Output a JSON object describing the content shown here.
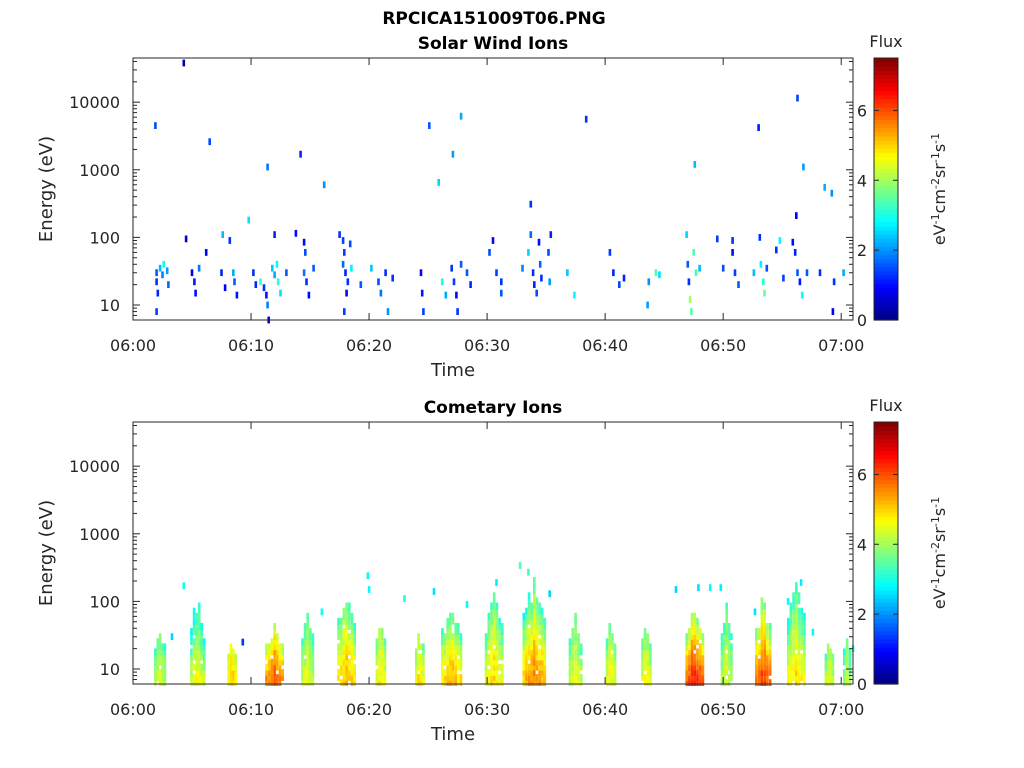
{
  "figure": {
    "filename": "RPCICA151009T06.PNG"
  },
  "chart_data": [
    {
      "type": "heatmap",
      "title": "Solar Wind Ions",
      "xlabel": "Time",
      "ylabel": "Energy (eV)",
      "x_ticks": [
        "06:00",
        "06:10",
        "06:20",
        "06:30",
        "06:40",
        "06:50",
        "07:00"
      ],
      "x_range_minutes": [
        0,
        61
      ],
      "y_scale": "log",
      "y_range": [
        6,
        45000
      ],
      "y_ticks": [
        {
          "value": 10,
          "label": "10"
        },
        {
          "value": 100,
          "label": "100"
        },
        {
          "value": 1000,
          "label": "1000"
        },
        {
          "value": 10000,
          "label": "10000"
        }
      ],
      "colorbar": {
        "title": "Flux",
        "label": "eV-1cm-2sr-1s-1",
        "range": [
          0,
          7.5
        ],
        "ticks": [
          "0",
          "2",
          "4",
          "6"
        ],
        "colormap": "jet"
      },
      "grid": false,
      "cells": [
        [
          2.0,
          30,
          1.6
        ],
        [
          2.0,
          22,
          1.3
        ],
        [
          2.1,
          15,
          1.2
        ],
        [
          2.0,
          8,
          1.4
        ],
        [
          2.3,
          35,
          2.3
        ],
        [
          2.5,
          28,
          1.9
        ],
        [
          2.6,
          40,
          2.9
        ],
        [
          2.9,
          32,
          2.1
        ],
        [
          3.0,
          20,
          1.7
        ],
        [
          1.9,
          4500,
          1.5
        ],
        [
          4.3,
          38000,
          0.3
        ],
        [
          4.5,
          95,
          0.6
        ],
        [
          5.0,
          30,
          0.9
        ],
        [
          5.2,
          22,
          1.1
        ],
        [
          5.3,
          15,
          1.0
        ],
        [
          5.6,
          35,
          1.8
        ],
        [
          6.2,
          60,
          0.9
        ],
        [
          6.5,
          2600,
          1.5
        ],
        [
          7.5,
          30,
          1.2
        ],
        [
          7.8,
          18,
          0.9
        ],
        [
          7.6,
          110,
          2.3
        ],
        [
          8.2,
          90,
          1.3
        ],
        [
          8.5,
          30,
          2.2
        ],
        [
          8.6,
          22,
          1.6
        ],
        [
          8.8,
          14,
          1.1
        ],
        [
          9.8,
          180,
          2.6
        ],
        [
          10.2,
          30,
          1.3
        ],
        [
          10.4,
          20,
          1.2
        ],
        [
          10.8,
          22,
          3.2
        ],
        [
          11.1,
          18,
          1.3
        ],
        [
          11.3,
          14,
          1.1
        ],
        [
          11.4,
          10,
          1.9
        ],
        [
          11.5,
          6,
          0.7
        ],
        [
          11.4,
          1100,
          1.8
        ],
        [
          11.8,
          35,
          2.4
        ],
        [
          12.0,
          28,
          2.2
        ],
        [
          12.2,
          40,
          2.8
        ],
        [
          12.3,
          22,
          3.1
        ],
        [
          12.5,
          15,
          2.6
        ],
        [
          12.0,
          110,
          1.2
        ],
        [
          13.0,
          30,
          1.6
        ],
        [
          13.8,
          115,
          1.0
        ],
        [
          14.2,
          1700,
          1.2
        ],
        [
          14.5,
          85,
          1.0
        ],
        [
          14.6,
          60,
          1.5
        ],
        [
          14.5,
          30,
          1.8
        ],
        [
          14.7,
          22,
          1.3
        ],
        [
          14.9,
          14,
          1.0
        ],
        [
          15.3,
          35,
          1.6
        ],
        [
          16.2,
          600,
          2.0
        ],
        [
          17.5,
          110,
          1.3
        ],
        [
          17.8,
          90,
          1.4
        ],
        [
          17.9,
          60,
          1.4
        ],
        [
          17.8,
          40,
          1.7
        ],
        [
          18.0,
          30,
          1.2
        ],
        [
          18.2,
          22,
          1.3
        ],
        [
          18.1,
          15,
          1.0
        ],
        [
          18.4,
          80,
          1.5
        ],
        [
          18.5,
          35,
          2.7
        ],
        [
          17.9,
          8,
          1.4
        ],
        [
          19.3,
          20,
          1.6
        ],
        [
          20.2,
          35,
          2.4
        ],
        [
          20.8,
          22,
          1.5
        ],
        [
          21.0,
          15,
          1.8
        ],
        [
          21.4,
          30,
          1.3
        ],
        [
          21.6,
          8,
          2.0
        ],
        [
          22.0,
          25,
          1.3
        ],
        [
          24.4,
          30,
          1.0
        ],
        [
          24.5,
          15,
          1.1
        ],
        [
          24.6,
          8,
          1.4
        ],
        [
          25.1,
          4500,
          1.6
        ],
        [
          25.9,
          650,
          2.5
        ],
        [
          26.2,
          22,
          3.0
        ],
        [
          26.5,
          14,
          2.2
        ],
        [
          27.0,
          35,
          1.3
        ],
        [
          27.1,
          1700,
          2.1
        ],
        [
          27.2,
          22,
          1.4
        ],
        [
          27.4,
          14,
          1.0
        ],
        [
          27.5,
          8,
          1.3
        ],
        [
          27.8,
          40,
          1.6
        ],
        [
          27.8,
          6200,
          2.2
        ],
        [
          28.3,
          30,
          1.6
        ],
        [
          28.6,
          20,
          1.2
        ],
        [
          30.2,
          60,
          1.5
        ],
        [
          30.5,
          90,
          1.0
        ],
        [
          30.8,
          30,
          1.4
        ],
        [
          31.2,
          15,
          1.6
        ],
        [
          31.2,
          22,
          1.3
        ],
        [
          33.0,
          35,
          1.9
        ],
        [
          33.5,
          60,
          2.5
        ],
        [
          33.7,
          110,
          1.7
        ],
        [
          33.7,
          310,
          1.3
        ],
        [
          33.9,
          30,
          1.3
        ],
        [
          34.0,
          20,
          1.2
        ],
        [
          34.2,
          15,
          1.5
        ],
        [
          34.4,
          85,
          1.0
        ],
        [
          34.5,
          40,
          1.7
        ],
        [
          34.6,
          25,
          1.3
        ],
        [
          35.4,
          110,
          1.2
        ],
        [
          35.2,
          60,
          1.5
        ],
        [
          35.3,
          22,
          2.1
        ],
        [
          36.8,
          30,
          2.4
        ],
        [
          37.4,
          14,
          2.8
        ],
        [
          38.4,
          5600,
          1.3
        ],
        [
          40.4,
          60,
          1.4
        ],
        [
          40.7,
          30,
          1.2
        ],
        [
          41.2,
          20,
          1.5
        ],
        [
          41.6,
          25,
          1.2
        ],
        [
          43.6,
          10,
          2.1
        ],
        [
          43.7,
          22,
          2.0
        ],
        [
          44.3,
          30,
          3.4
        ],
        [
          44.6,
          28,
          2.6
        ],
        [
          46.9,
          110,
          2.5
        ],
        [
          47.0,
          40,
          1.6
        ],
        [
          47.1,
          22,
          1.3
        ],
        [
          47.2,
          12,
          4.0
        ],
        [
          47.3,
          8,
          3.5
        ],
        [
          47.5,
          60,
          3.4
        ],
        [
          47.7,
          30,
          3.3
        ],
        [
          48.0,
          35,
          2.3
        ],
        [
          47.6,
          1200,
          2.3
        ],
        [
          49.5,
          95,
          1.4
        ],
        [
          50.0,
          35,
          1.5
        ],
        [
          50.8,
          90,
          1.3
        ],
        [
          50.8,
          60,
          1.0
        ],
        [
          51.0,
          30,
          1.4
        ],
        [
          51.3,
          20,
          1.6
        ],
        [
          52.6,
          30,
          2.3
        ],
        [
          53.1,
          100,
          1.3
        ],
        [
          53.2,
          40,
          2.7
        ],
        [
          53.4,
          22,
          3.1
        ],
        [
          53.5,
          15,
          3.6
        ],
        [
          53.7,
          35,
          1.5
        ],
        [
          53.0,
          4200,
          1.1
        ],
        [
          54.5,
          65,
          1.3
        ],
        [
          54.8,
          90,
          2.8
        ],
        [
          55.1,
          25,
          1.4
        ],
        [
          55.9,
          85,
          1.0
        ],
        [
          56.1,
          60,
          1.2
        ],
        [
          56.3,
          30,
          1.6
        ],
        [
          56.5,
          22,
          1.1
        ],
        [
          56.7,
          14,
          2.9
        ],
        [
          56.2,
          210,
          0.9
        ],
        [
          56.3,
          11500,
          1.4
        ],
        [
          56.8,
          1100,
          2.1
        ],
        [
          57.1,
          30,
          1.6
        ],
        [
          58.2,
          30,
          1.3
        ],
        [
          58.6,
          550,
          2.2
        ],
        [
          59.2,
          450,
          2.0
        ],
        [
          60.2,
          30,
          2.2
        ],
        [
          59.3,
          8,
          0.8
        ],
        [
          59.4,
          22,
          1.3
        ]
      ]
    },
    {
      "type": "heatmap",
      "title": "Cometary Ions",
      "xlabel": "Time",
      "ylabel": "Energy (eV)",
      "x_ticks": [
        "06:00",
        "06:10",
        "06:20",
        "06:30",
        "06:40",
        "06:50",
        "07:00"
      ],
      "x_range_minutes": [
        0,
        61
      ],
      "y_scale": "log",
      "y_range": [
        6,
        45000
      ],
      "y_ticks": [
        {
          "value": 10,
          "label": "10"
        },
        {
          "value": 100,
          "label": "100"
        },
        {
          "value": 1000,
          "label": "1000"
        },
        {
          "value": 10000,
          "label": "10000"
        }
      ],
      "colorbar": {
        "title": "Flux",
        "label": "eV-1cm-2sr-1s-1",
        "range": [
          0,
          7.5
        ],
        "ticks": [
          "0",
          "2",
          "4",
          "6"
        ],
        "colormap": "jet"
      },
      "grid": false,
      "bursts": [
        {
          "t": 2.3,
          "w": 1.0,
          "peak": 40,
          "core": 4.5,
          "edge": 3.6
        },
        {
          "t": 5.5,
          "w": 1.3,
          "peak": 150,
          "core": 4.7,
          "edge": 3.0
        },
        {
          "t": 8.4,
          "w": 0.8,
          "peak": 30,
          "core": 5.1,
          "edge": 4.5
        },
        {
          "t": 12.0,
          "w": 1.6,
          "peak": 45,
          "core": 6.0,
          "edge": 4.3
        },
        {
          "t": 14.8,
          "w": 1.1,
          "peak": 90,
          "core": 4.6,
          "edge": 3.5
        },
        {
          "t": 18.1,
          "w": 1.6,
          "peak": 170,
          "core": 5.3,
          "edge": 3.6
        },
        {
          "t": 21.0,
          "w": 0.9,
          "peak": 60,
          "core": 4.9,
          "edge": 4.0
        },
        {
          "t": 24.3,
          "w": 0.8,
          "peak": 45,
          "core": 5.0,
          "edge": 4.0
        },
        {
          "t": 27.0,
          "w": 1.8,
          "peak": 120,
          "core": 5.3,
          "edge": 3.6
        },
        {
          "t": 30.6,
          "w": 1.6,
          "peak": 160,
          "core": 5.0,
          "edge": 3.5
        },
        {
          "t": 34.0,
          "w": 2.0,
          "peak": 260,
          "core": 5.6,
          "edge": 3.4
        },
        {
          "t": 37.5,
          "w": 1.2,
          "peak": 70,
          "core": 4.6,
          "edge": 3.6
        },
        {
          "t": 40.5,
          "w": 0.9,
          "peak": 60,
          "core": 4.8,
          "edge": 3.8
        },
        {
          "t": 43.5,
          "w": 0.9,
          "peak": 50,
          "core": 4.7,
          "edge": 3.8
        },
        {
          "t": 47.6,
          "w": 1.6,
          "peak": 110,
          "core": 6.4,
          "edge": 4.0
        },
        {
          "t": 50.3,
          "w": 1.0,
          "peak": 100,
          "core": 4.5,
          "edge": 3.5
        },
        {
          "t": 53.4,
          "w": 1.4,
          "peak": 140,
          "core": 6.2,
          "edge": 3.8
        },
        {
          "t": 56.2,
          "w": 1.6,
          "peak": 270,
          "core": 5.0,
          "edge": 3.3
        },
        {
          "t": 59.0,
          "w": 0.8,
          "peak": 30,
          "core": 4.6,
          "edge": 3.8
        },
        {
          "t": 60.5,
          "w": 0.7,
          "peak": 35,
          "core": 4.2,
          "edge": 3.5
        }
      ],
      "cells": [
        [
          4.3,
          170,
          2.9
        ],
        [
          3.3,
          30,
          2.5
        ],
        [
          9.3,
          25,
          1.3
        ],
        [
          16.0,
          70,
          2.9
        ],
        [
          19.9,
          240,
          2.8
        ],
        [
          20.0,
          150,
          2.8
        ],
        [
          23.0,
          110,
          3.0
        ],
        [
          25.5,
          140,
          2.6
        ],
        [
          28.3,
          90,
          2.8
        ],
        [
          30.8,
          190,
          2.7
        ],
        [
          32.8,
          340,
          3.4
        ],
        [
          33.5,
          270,
          3.2
        ],
        [
          35.3,
          130,
          2.5
        ],
        [
          46.0,
          150,
          2.5
        ],
        [
          47.9,
          160,
          2.6
        ],
        [
          48.9,
          160,
          2.8
        ],
        [
          49.8,
          160,
          2.7
        ],
        [
          52.7,
          70,
          2.6
        ],
        [
          55.5,
          100,
          2.8
        ],
        [
          56.6,
          190,
          2.7
        ],
        [
          57.6,
          35,
          2.8
        ],
        [
          61.0,
          20,
          3.0
        ]
      ]
    }
  ]
}
